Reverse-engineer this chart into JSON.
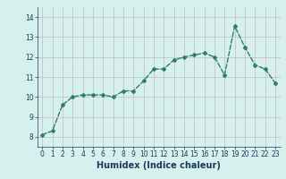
{
  "x": [
    0,
    1,
    2,
    3,
    4,
    5,
    6,
    7,
    8,
    9,
    10,
    11,
    12,
    13,
    14,
    15,
    16,
    17,
    18,
    19,
    20,
    21,
    22,
    23
  ],
  "y": [
    8.1,
    8.3,
    9.6,
    10.0,
    10.1,
    10.1,
    10.1,
    10.0,
    10.3,
    10.3,
    10.8,
    11.4,
    11.4,
    11.85,
    12.0,
    12.1,
    12.2,
    12.0,
    11.1,
    13.55,
    12.5,
    11.6,
    11.4,
    10.7
  ],
  "line_color": "#2e7d6e",
  "marker": "D",
  "marker_size": 2,
  "bg_color": "#d6f0ee",
  "grid_color": "#c8b8b8",
  "xlabel": "Humidex (Indice chaleur)",
  "xlabel_color": "#1a3a5c",
  "ylim": [
    7.5,
    14.5
  ],
  "xlim": [
    -0.5,
    23.5
  ],
  "yticks": [
    8,
    9,
    10,
    11,
    12,
    13,
    14
  ],
  "xticks": [
    0,
    1,
    2,
    3,
    4,
    5,
    6,
    7,
    8,
    9,
    10,
    11,
    12,
    13,
    14,
    15,
    16,
    17,
    18,
    19,
    20,
    21,
    22,
    23
  ],
  "tick_fontsize": 5.5,
  "xlabel_fontsize": 7,
  "line_width": 1.0
}
